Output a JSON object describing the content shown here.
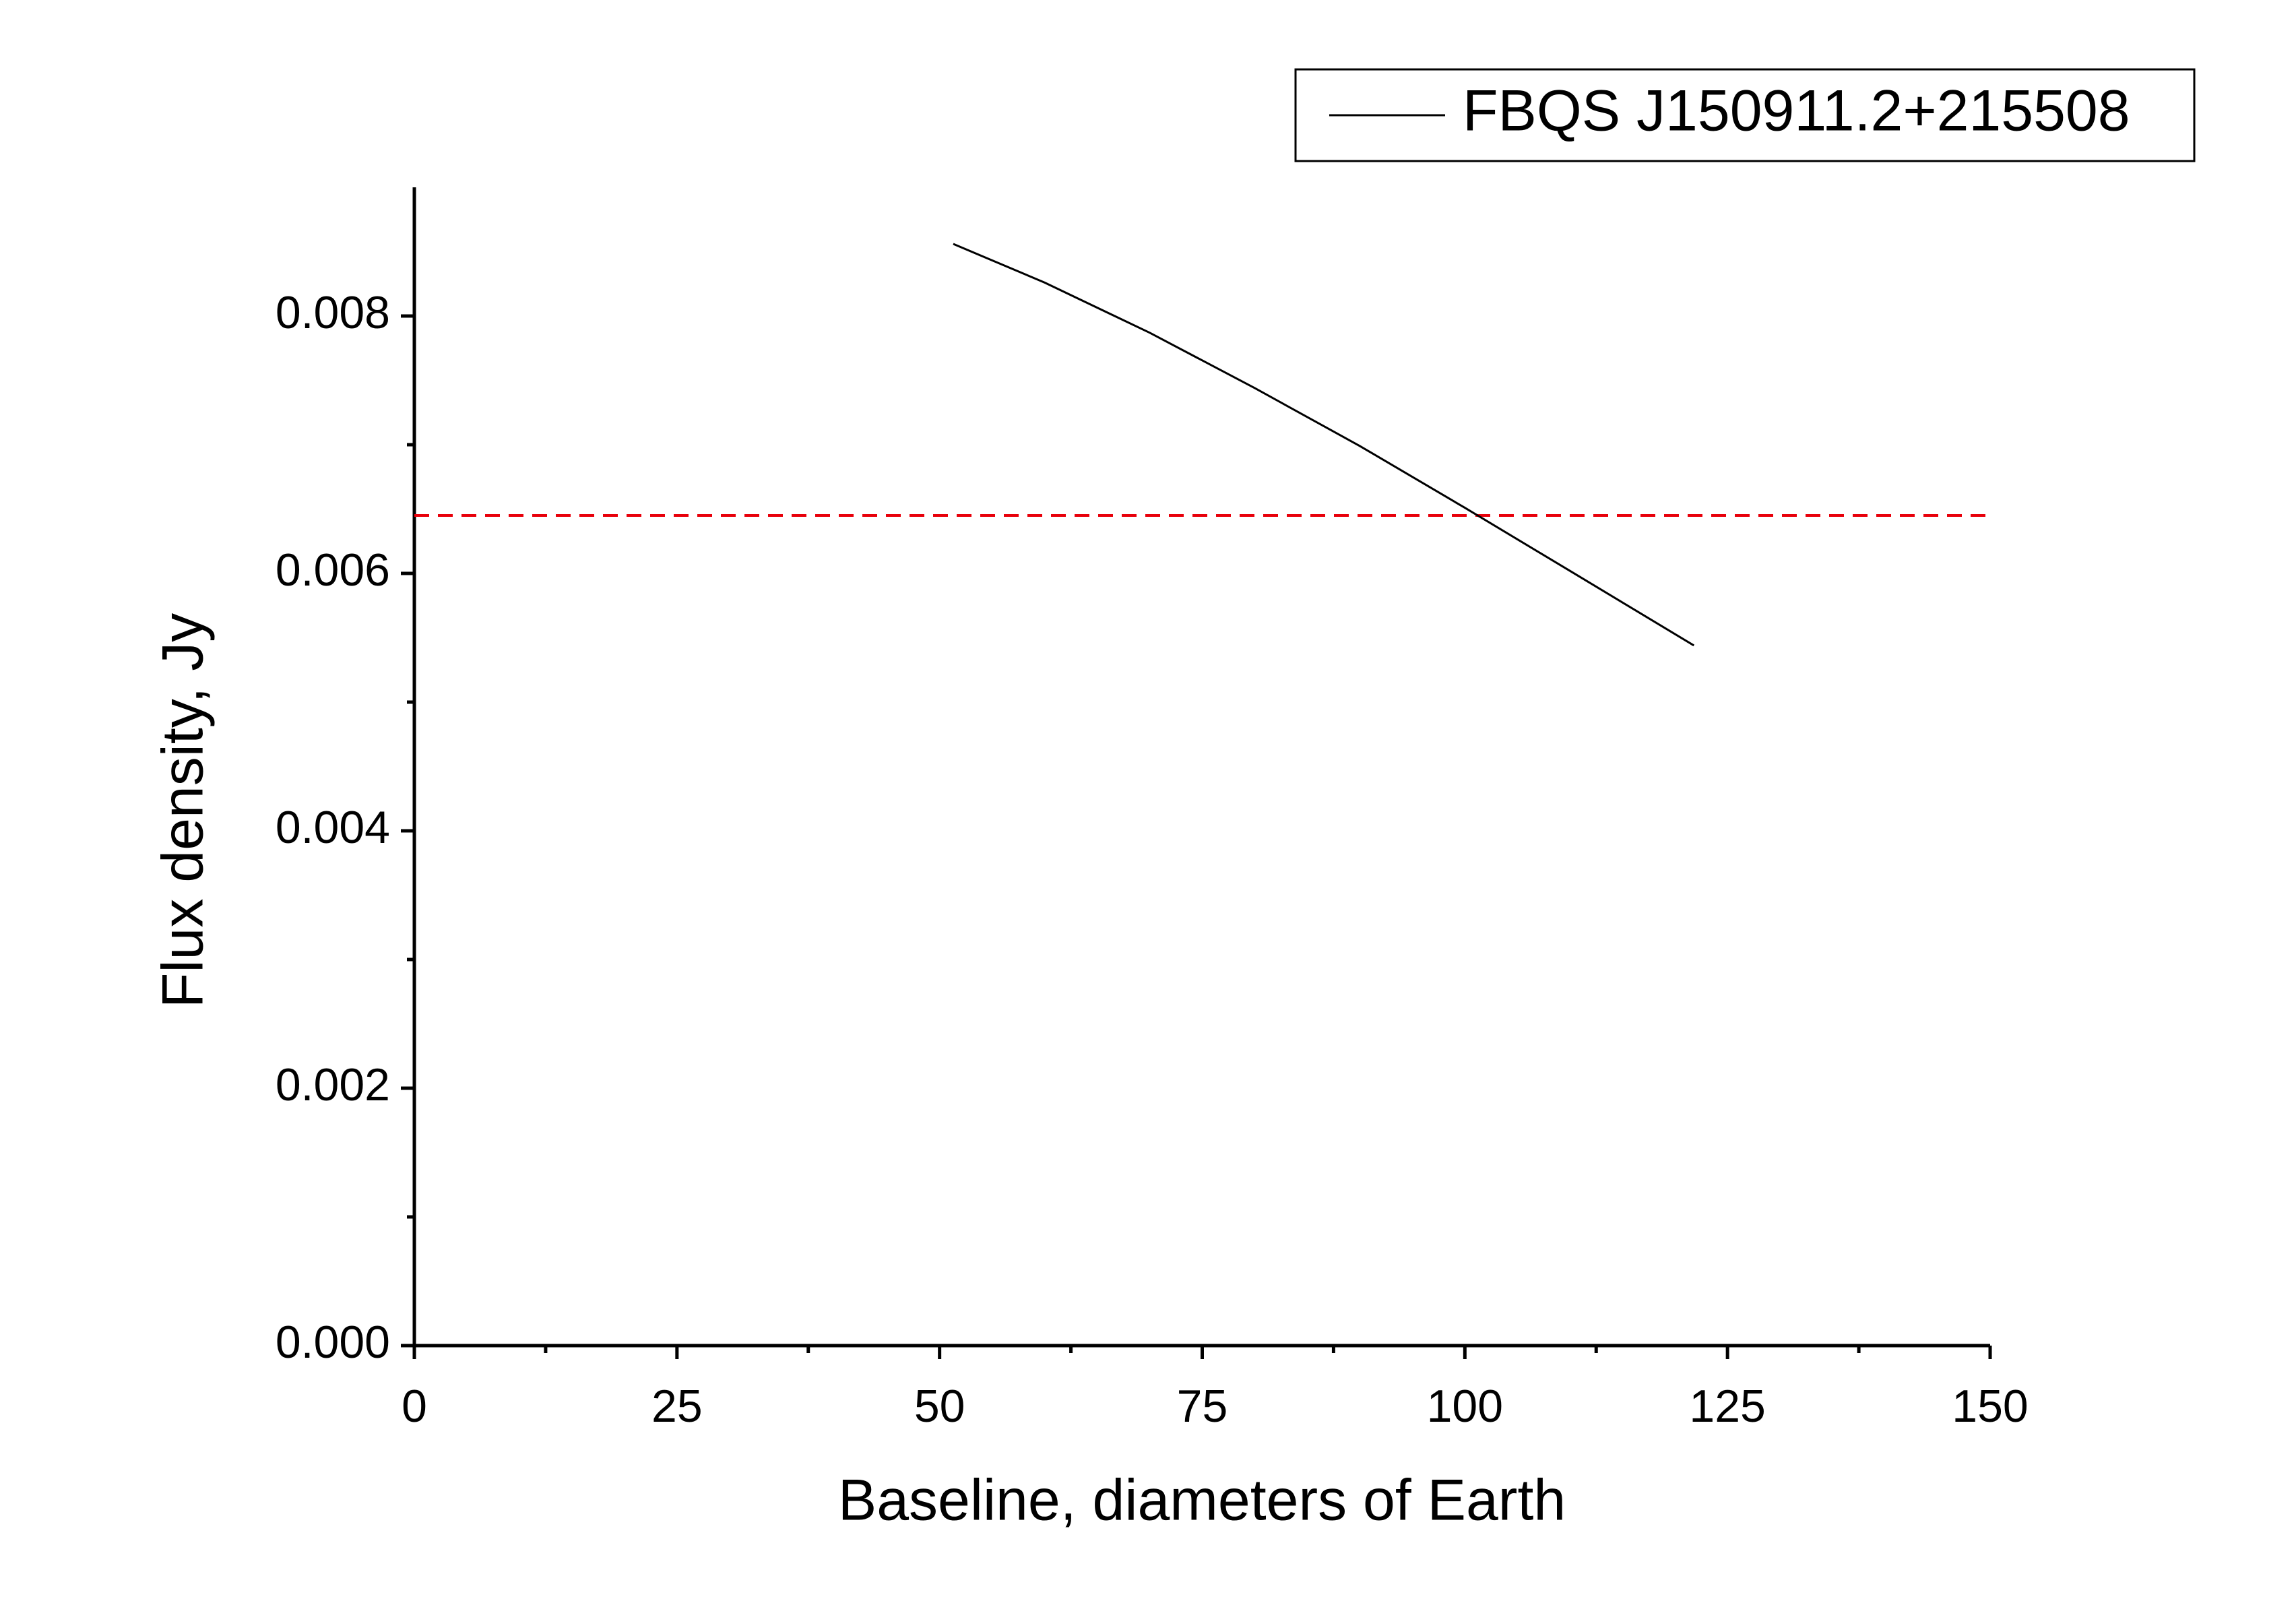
{
  "chart_data": {
    "type": "line",
    "x_label": "Baseline, diameters of Earth",
    "y_label": "Flux density, Jy",
    "x": [
      51.3,
      60,
      70,
      80,
      90,
      100,
      110,
      121.8
    ],
    "series": [
      {
        "name": "FBQS J150911.2+215508",
        "color": "#000000",
        "values": [
          0.00856,
          0.00826,
          0.00787,
          0.00744,
          0.00699,
          0.00651,
          0.00602,
          0.00544
        ]
      }
    ],
    "hlines": [
      {
        "value": 0.00645,
        "color": "#e8000b",
        "dashed": true
      }
    ],
    "xlim": [
      0,
      150
    ],
    "xticks": [
      0,
      25,
      50,
      75,
      100,
      125,
      150
    ],
    "ylim": [
      0,
      0.009
    ],
    "yticks": [
      {
        "value": 0,
        "label": "0.000"
      },
      {
        "value": 0.002,
        "label": "0.002"
      },
      {
        "value": 0.004,
        "label": "0.004"
      },
      {
        "value": 0.006,
        "label": "0.006"
      },
      {
        "value": 0.008,
        "label": "0.008"
      }
    ],
    "minor_ticks": true,
    "grid": false,
    "legend": "upper right"
  }
}
